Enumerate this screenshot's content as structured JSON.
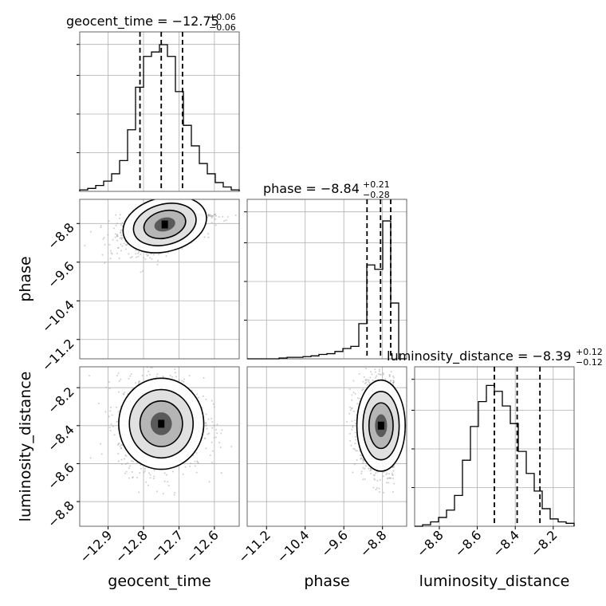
{
  "chart_data": {
    "type": "corner",
    "parameters": [
      {
        "name": "geocent_time",
        "title": {
          "prefix": "geocent_time = ",
          "median": "−12.75",
          "plus": "+0.06",
          "minus": "−0.06"
        },
        "range": [
          -12.98,
          -12.53
        ],
        "ticks": [
          -12.9,
          -12.8,
          -12.7,
          -12.6
        ],
        "tick_labels": [
          "−12.9",
          "−12.8",
          "−12.7",
          "−12.6"
        ],
        "quantiles": [
          -12.81,
          -12.75,
          -12.69
        ],
        "histogram": {
          "edges_start": -12.98,
          "bin_width": 0.0225,
          "heights": [
            0.01,
            0.02,
            0.04,
            0.07,
            0.12,
            0.21,
            0.42,
            0.71,
            0.92,
            0.95,
            1.0,
            0.92,
            0.68,
            0.45,
            0.31,
            0.19,
            0.12,
            0.06,
            0.03,
            0.01
          ]
        }
      },
      {
        "name": "phase",
        "title": {
          "prefix": "phase = ",
          "median": "−8.84",
          "plus": "+0.21",
          "minus": "−0.28"
        },
        "range": [
          -11.6,
          -8.3
        ],
        "ticks": [
          -11.2,
          -10.4,
          -9.6,
          -8.8
        ],
        "tick_labels": [
          "−11.2",
          "−10.4",
          "−9.6",
          "−8.8"
        ],
        "quantiles": [
          -9.12,
          -8.84,
          -8.63
        ],
        "histogram": {
          "edges_start": -11.6,
          "bin_width": 0.165,
          "heights": [
            0.0,
            0.0,
            0.0,
            0.0,
            0.005,
            0.01,
            0.01,
            0.015,
            0.02,
            0.03,
            0.035,
            0.05,
            0.07,
            0.085,
            0.24,
            0.64,
            0.61,
            0.94,
            0.38,
            0.0
          ]
        }
      },
      {
        "name": "luminosity_distance",
        "title": {
          "prefix": "luminosity_distance = ",
          "median": "−8.39",
          "plus": "+0.12",
          "minus": "−0.12"
        },
        "range": [
          -8.93,
          -8.09
        ],
        "ticks": [
          -8.8,
          -8.6,
          -8.4,
          -8.2
        ],
        "tick_labels": [
          "−8.8",
          "−8.6",
          "−8.4",
          "−8.2"
        ],
        "quantiles": [
          -8.51,
          -8.39,
          -8.27
        ],
        "histogram": {
          "edges_start": -8.93,
          "bin_width": 0.042,
          "heights": [
            0.0,
            0.01,
            0.03,
            0.06,
            0.11,
            0.21,
            0.45,
            0.68,
            0.85,
            0.96,
            0.92,
            0.82,
            0.7,
            0.51,
            0.36,
            0.24,
            0.12,
            0.05,
            0.03,
            0.02
          ]
        }
      }
    ],
    "correlations": [
      {
        "x": "geocent_time",
        "y": "phase",
        "center": [
          -12.74,
          -8.82
        ],
        "sigma": [
          0.06,
          0.28
        ],
        "rho": 0.45,
        "y_max": -8.6
      },
      {
        "x": "geocent_time",
        "y": "luminosity_distance",
        "center": [
          -12.75,
          -8.39
        ],
        "sigma": [
          0.06,
          0.12
        ],
        "rho": 0.0,
        "y_max": null
      },
      {
        "x": "phase",
        "y": "luminosity_distance",
        "center": [
          -8.83,
          -8.4
        ],
        "sigma": [
          0.25,
          0.12
        ],
        "rho": 0.0,
        "x_max": -8.55
      }
    ],
    "grid": true,
    "colors": {
      "hist": "#000000",
      "points": "#9e9e9e",
      "grid": "#b0b0b0"
    }
  }
}
